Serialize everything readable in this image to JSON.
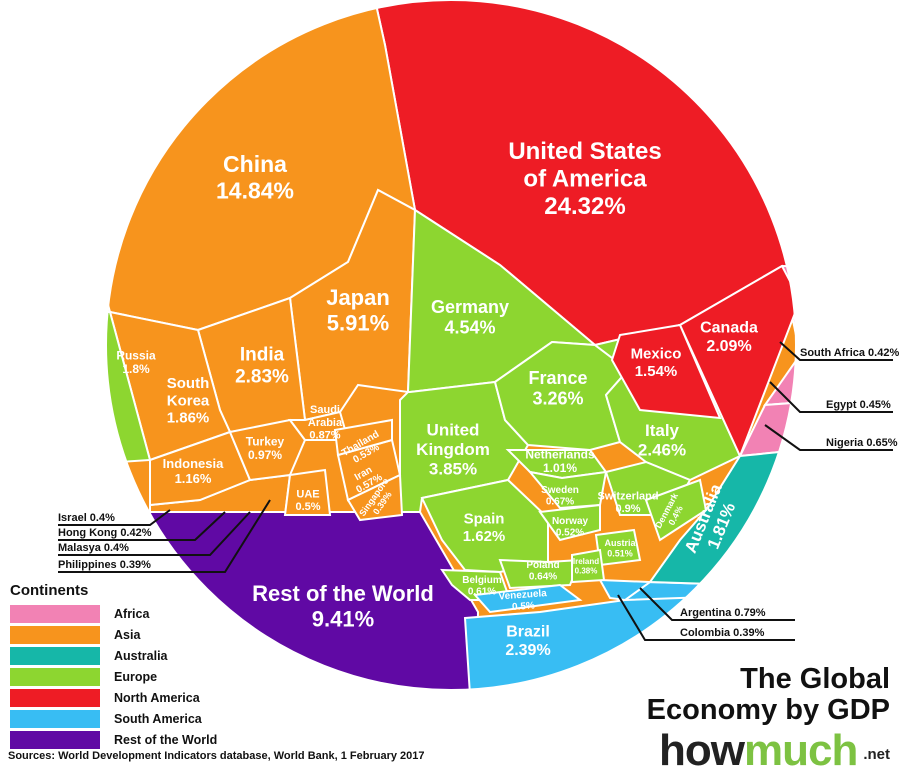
{
  "chart_data": {
    "type": "voronoi-treemap",
    "title": "The Global Economy by GDP",
    "groups": [
      {
        "name": "Africa",
        "color": "#f282b4"
      },
      {
        "name": "Asia",
        "color": "#f7941d"
      },
      {
        "name": "Australia",
        "color": "#16b7a8"
      },
      {
        "name": "Europe",
        "color": "#8dd630"
      },
      {
        "name": "North America",
        "color": "#ee1c25"
      },
      {
        "name": "South America",
        "color": "#38bdf3"
      },
      {
        "name": "Rest of the World",
        "color": "#6009a4"
      }
    ],
    "cells": [
      {
        "name": "United States of America",
        "lines": [
          "United States",
          "of America"
        ],
        "value": "24.32%",
        "group": "North America"
      },
      {
        "name": "China",
        "lines": [
          "China"
        ],
        "value": "14.84%",
        "group": "Asia"
      },
      {
        "name": "Rest of the World",
        "lines": [
          "Rest of the World"
        ],
        "value": "9.41%",
        "group": "Rest of the World"
      },
      {
        "name": "Japan",
        "lines": [
          "Japan"
        ],
        "value": "5.91%",
        "group": "Asia"
      },
      {
        "name": "Germany",
        "lines": [
          "Germany"
        ],
        "value": "4.54%",
        "group": "Europe"
      },
      {
        "name": "United Kingdom",
        "lines": [
          "United",
          "Kingdom"
        ],
        "value": "3.85%",
        "group": "Europe"
      },
      {
        "name": "France",
        "lines": [
          "France"
        ],
        "value": "3.26%",
        "group": "Europe"
      },
      {
        "name": "India",
        "lines": [
          "India"
        ],
        "value": "2.83%",
        "group": "Asia"
      },
      {
        "name": "Italy",
        "lines": [
          "Italy"
        ],
        "value": "2.46%",
        "group": "Europe"
      },
      {
        "name": "Brazil",
        "lines": [
          "Brazil"
        ],
        "value": "2.39%",
        "group": "South America"
      },
      {
        "name": "Canada",
        "lines": [
          "Canada"
        ],
        "value": "2.09%",
        "group": "North America"
      },
      {
        "name": "South Korea",
        "lines": [
          "South",
          "Korea"
        ],
        "value": "1.86%",
        "group": "Asia"
      },
      {
        "name": "Russia",
        "lines": [
          "Russia"
        ],
        "value": "1.8%",
        "group": "Europe"
      },
      {
        "name": "Australia",
        "lines": [
          "Australia"
        ],
        "value": "1.81%",
        "group": "Australia"
      },
      {
        "name": "Spain",
        "lines": [
          "Spain"
        ],
        "value": "1.62%",
        "group": "Europe"
      },
      {
        "name": "Mexico",
        "lines": [
          "Mexico"
        ],
        "value": "1.54%",
        "group": "North America"
      },
      {
        "name": "Indonesia",
        "lines": [
          "Indonesia"
        ],
        "value": "1.16%",
        "group": "Asia"
      },
      {
        "name": "Netherlands",
        "lines": [
          "Netherlands"
        ],
        "value": "1.01%",
        "group": "Europe"
      },
      {
        "name": "Turkey",
        "lines": [
          "Turkey"
        ],
        "value": "0.97%",
        "group": "Asia"
      },
      {
        "name": "Switzerland",
        "lines": [
          "Switzerland"
        ],
        "value": "0.9%",
        "group": "Europe"
      },
      {
        "name": "Saudi Arabia",
        "lines": [
          "Saudi",
          "Arabia"
        ],
        "value": "0.87%",
        "group": "Asia"
      },
      {
        "name": "Sweden",
        "lines": [
          "Sweden"
        ],
        "value": "0.67%",
        "group": "Europe"
      },
      {
        "name": "Poland",
        "lines": [
          "Poland"
        ],
        "value": "0.64%",
        "group": "Europe"
      },
      {
        "name": "Belgium",
        "lines": [
          "Belgium"
        ],
        "value": "0.61%",
        "group": "Europe"
      },
      {
        "name": "Iran",
        "lines": [
          "Iran"
        ],
        "value": "0.57%",
        "group": "Asia"
      },
      {
        "name": "Thailand",
        "lines": [
          "Thailand"
        ],
        "value": "0.53%",
        "group": "Asia"
      },
      {
        "name": "Norway",
        "lines": [
          "Norway"
        ],
        "value": "0.52%",
        "group": "Europe"
      },
      {
        "name": "Austria",
        "lines": [
          "Austria"
        ],
        "value": "0.51%",
        "group": "Europe"
      },
      {
        "name": "UAE",
        "lines": [
          "UAE"
        ],
        "value": "0.5%",
        "group": "Asia"
      },
      {
        "name": "Venezuela",
        "lines": [
          "Venezuela"
        ],
        "value": "0.5%",
        "group": "South America"
      },
      {
        "name": "Denmark",
        "lines": [
          "Denmark"
        ],
        "value": "0.4%",
        "group": "Europe"
      },
      {
        "name": "Singapore",
        "lines": [
          "Singapore"
        ],
        "value": "0.39%",
        "group": "Asia"
      },
      {
        "name": "Ireland",
        "lines": [
          "Ireland"
        ],
        "value": "0.38%",
        "group": "Europe"
      }
    ],
    "callouts": [
      {
        "name": "South Africa",
        "value": "0.42%",
        "text": "South Africa 0.42%",
        "group": "Africa"
      },
      {
        "name": "Egypt",
        "value": "0.45%",
        "text": "Egypt 0.45%",
        "group": "Africa"
      },
      {
        "name": "Nigeria",
        "value": "0.65%",
        "text": "Nigeria 0.65%",
        "group": "Africa"
      },
      {
        "name": "Argentina",
        "value": "0.79%",
        "text": "Argentina 0.79%",
        "group": "South America"
      },
      {
        "name": "Colombia",
        "value": "0.39%",
        "text": "Colombia 0.39%",
        "group": "South America"
      },
      {
        "name": "Israel",
        "value": "0.4%",
        "text": "Israel 0.4%",
        "group": "Asia"
      },
      {
        "name": "Hong Kong",
        "value": "0.42%",
        "text": "Hong Kong 0.42%",
        "group": "Asia"
      },
      {
        "name": "Malasya",
        "value": "0.4%",
        "text": "Malasya 0.4%",
        "group": "Asia"
      },
      {
        "name": "Philippines",
        "value": "0.39%",
        "text": "Philippines 0.39%",
        "group": "Asia"
      }
    ],
    "legend": {
      "title": "Continents",
      "position": "bottom-left"
    }
  },
  "brand": {
    "title_line1": "The Global",
    "title_line2": "Economy by GDP",
    "logo_how": "how",
    "logo_much": "much",
    "logo_net": ".net"
  },
  "sources": "Sources: World Development Indicators database, World Bank, 1 February 2017"
}
